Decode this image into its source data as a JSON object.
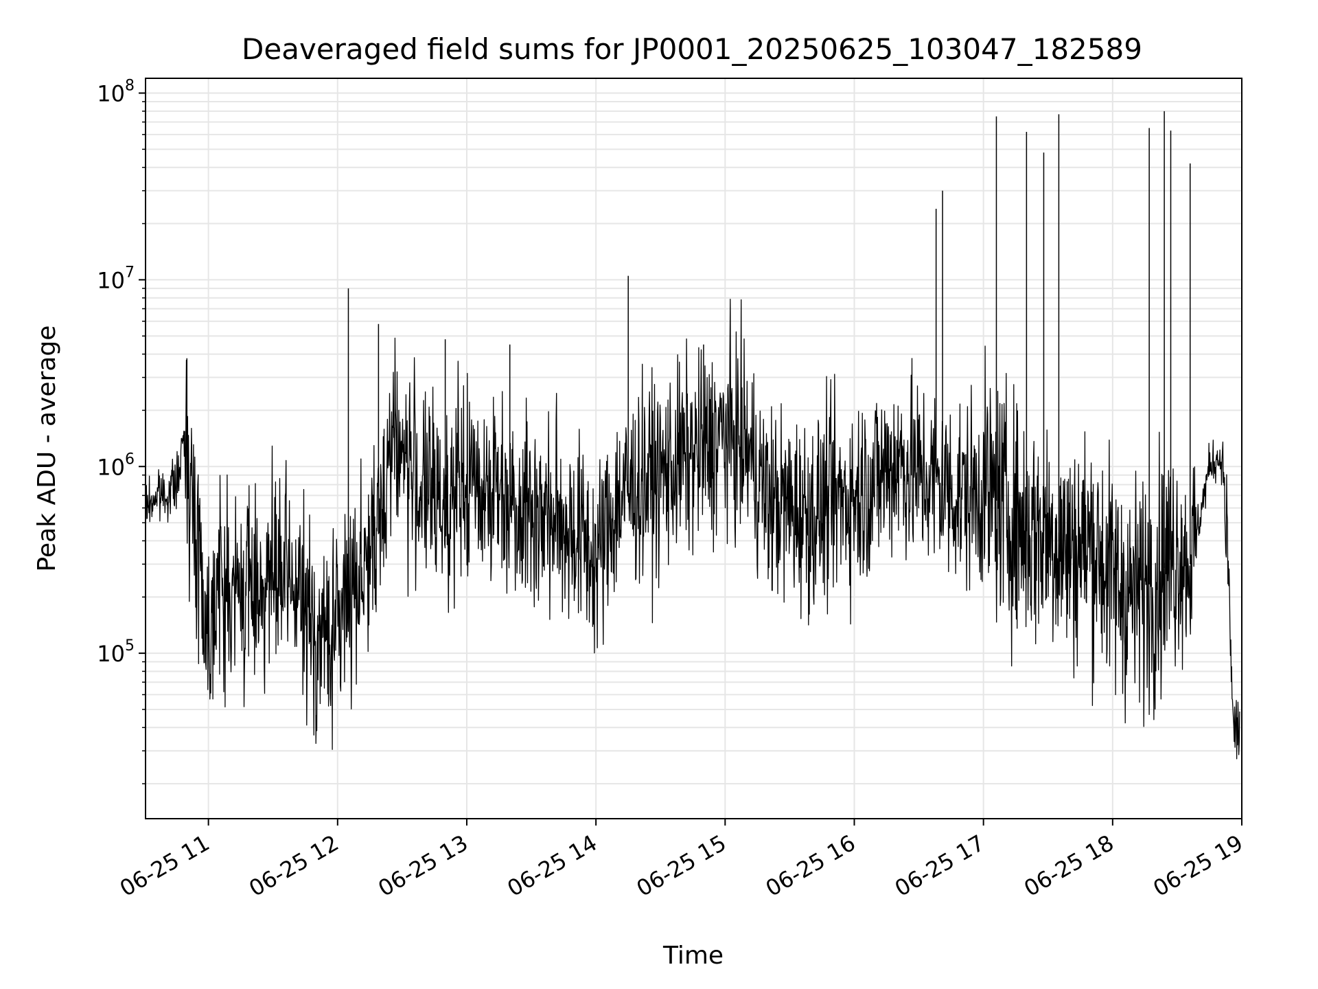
{
  "chart_data": {
    "type": "line",
    "title": "Deaveraged field sums for JP0001_20250625_103047_182589",
    "xlabel": "Time",
    "ylabel": "Peak ADU - average",
    "yscale": "log",
    "ylim": [
      13000,
      120000000
    ],
    "xlim": [
      "06-25 10:30:47",
      "06-25 19:00:00"
    ],
    "grid": true,
    "x_ticks": [
      "06-25 11",
      "06-25 12",
      "06-25 13",
      "06-25 14",
      "06-25 15",
      "06-25 16",
      "06-25 17",
      "06-25 18",
      "06-25 19"
    ],
    "y_ticks": [
      {
        "base": "10",
        "exp": "5",
        "value": 100000
      },
      {
        "base": "10",
        "exp": "6",
        "value": 1000000
      },
      {
        "base": "10",
        "exp": "7",
        "value": 10000000
      },
      {
        "base": "10",
        "exp": "8",
        "value": 100000000
      }
    ],
    "series": [
      {
        "color": "#000000",
        "x": [
          "10:31",
          "10:36",
          "10:41",
          "10:46",
          "10:49",
          "10:51",
          "10:53",
          "10:56",
          "10:59",
          "11:04",
          "11:10",
          "11:20",
          "11:30",
          "11:40",
          "11:50",
          "11:55",
          "12:00",
          "12:05",
          "12:15",
          "12:18",
          "12:25",
          "12:35",
          "12:45",
          "12:55",
          "13:05",
          "13:15",
          "13:25",
          "13:35",
          "13:45",
          "13:55",
          "14:00",
          "14:10",
          "14:20",
          "14:30",
          "14:40",
          "14:50",
          "15:00",
          "15:10",
          "15:20",
          "15:30",
          "15:40",
          "15:50",
          "16:00",
          "16:10",
          "16:20",
          "16:30",
          "16:40",
          "16:50",
          "17:00",
          "17:10",
          "17:20",
          "17:30",
          "17:40",
          "17:50",
          "18:00",
          "18:10",
          "18:20",
          "18:30",
          "18:36",
          "18:40",
          "18:45",
          "18:48",
          "18:51",
          "18:53",
          "18:56",
          "18:59"
        ],
        "values": [
          600000,
          700000,
          720000,
          850000,
          1500000,
          1200000,
          450000,
          400000,
          120000,
          250000,
          200000,
          230000,
          250000,
          230000,
          120000,
          120000,
          140000,
          220000,
          350000,
          350000,
          1600000,
          900000,
          650000,
          700000,
          850000,
          750000,
          650000,
          550000,
          500000,
          400000,
          300000,
          650000,
          800000,
          900000,
          1100000,
          1200000,
          1500000,
          1300000,
          650000,
          600000,
          550000,
          650000,
          700000,
          850000,
          1100000,
          900000,
          800000,
          700000,
          750000,
          600000,
          450000,
          450000,
          350000,
          400000,
          250000,
          200000,
          250000,
          350000,
          300000,
          500000,
          1000000,
          1100000,
          1100000,
          500000,
          40000,
          38000
        ]
      }
    ],
    "spikes": [
      {
        "x": "10:50",
        "value": 3800000
      },
      {
        "x": "12:05",
        "value": 9000000
      },
      {
        "x": "12:19",
        "value": 5800000
      },
      {
        "x": "12:50",
        "value": 4800000
      },
      {
        "x": "13:20",
        "value": 4500000
      },
      {
        "x": "14:15",
        "value": 10500000
      },
      {
        "x": "14:50",
        "value": 4500000
      },
      {
        "x": "16:38",
        "value": 24000000
      },
      {
        "x": "16:41",
        "value": 30000000
      },
      {
        "x": "17:06",
        "value": 75000000
      },
      {
        "x": "17:20",
        "value": 62000000
      },
      {
        "x": "17:28",
        "value": 48000000
      },
      {
        "x": "17:35",
        "value": 77000000
      },
      {
        "x": "18:17",
        "value": 65000000
      },
      {
        "x": "18:24",
        "value": 80000000
      },
      {
        "x": "18:27",
        "value": 63000000
      },
      {
        "x": "18:36",
        "value": 42000000
      }
    ]
  }
}
